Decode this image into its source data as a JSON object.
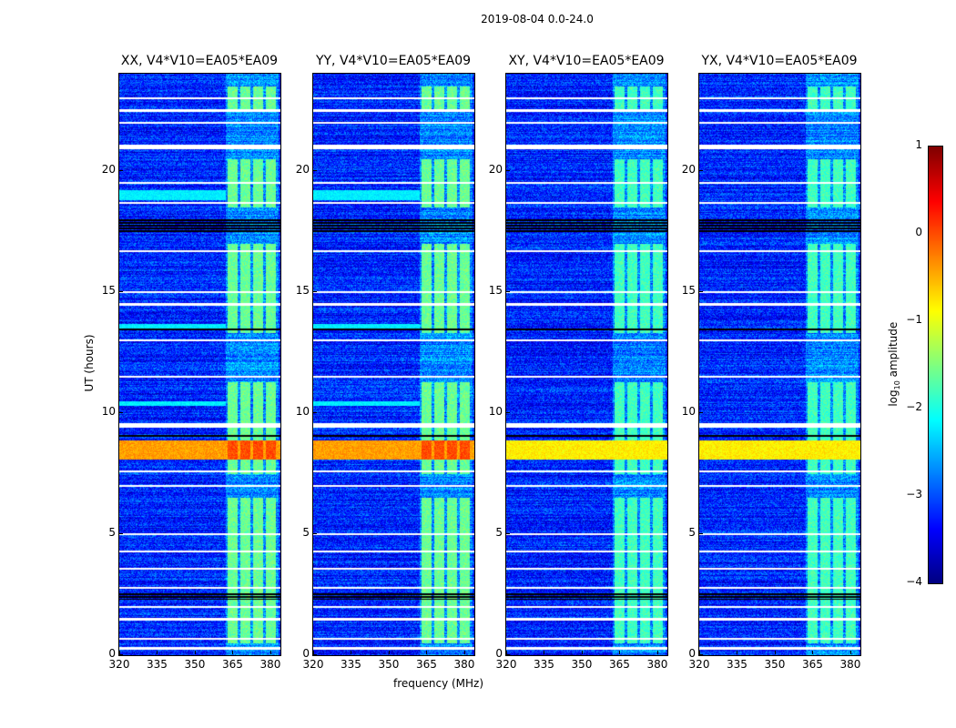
{
  "chart_data": {
    "type": "heatmap",
    "suptitle": "2019-08-04 0.0-24.0",
    "xlabel": "frequency (MHz)",
    "ylabel": "UT (hours)",
    "xlim": [
      320,
      384
    ],
    "ylim": [
      0,
      24
    ],
    "xticks": [
      "320",
      "335",
      "350",
      "365",
      "380"
    ],
    "xtick_values": [
      320,
      335,
      350,
      365,
      380
    ],
    "yticks": [
      "0",
      "5",
      "10",
      "15",
      "20"
    ],
    "ytick_values": [
      0,
      5,
      10,
      15,
      20
    ],
    "panels": [
      {
        "title": "XX, V4*V10=EA05*EA09"
      },
      {
        "title": "YY, V4*V10=EA05*EA09"
      },
      {
        "title": "XY, V4*V10=EA05*EA09"
      },
      {
        "title": "YX, V4*V10=EA05*EA09"
      }
    ],
    "colorbar": {
      "label": "log10 amplitude",
      "colormap": "jet",
      "range": [
        -4,
        1
      ],
      "ticks": [
        "1",
        "0",
        "−1",
        "−2",
        "−3",
        "−4"
      ],
      "tick_values": [
        1,
        0,
        -1,
        -2,
        -3,
        -4
      ]
    },
    "background_log_amplitude": -3.2,
    "rfi_channel_blocks_mhz": [
      [
        363,
        367
      ],
      [
        368,
        372
      ],
      [
        373,
        377
      ],
      [
        378,
        382
      ]
    ],
    "rfi_log_amplitude": -1.6,
    "strong_band_hours": [
      8.1,
      8.9
    ],
    "strong_band_log_amplitude": -0.4,
    "flagged_rows_hours": [
      0.3,
      0.7,
      1.5,
      2.0,
      2.8,
      3.6,
      4.3,
      5.0,
      7.0,
      7.6,
      9.5,
      11.5,
      13.0,
      14.5,
      15.0,
      16.7,
      18.7,
      19.5,
      21.0,
      22.0,
      22.5,
      23.0
    ],
    "dark_rows_hours": [
      [
        2.3,
        2.6
      ],
      [
        9.0,
        9.1
      ],
      [
        17.5,
        18.0
      ],
      [
        13.4,
        13.5
      ]
    ]
  }
}
